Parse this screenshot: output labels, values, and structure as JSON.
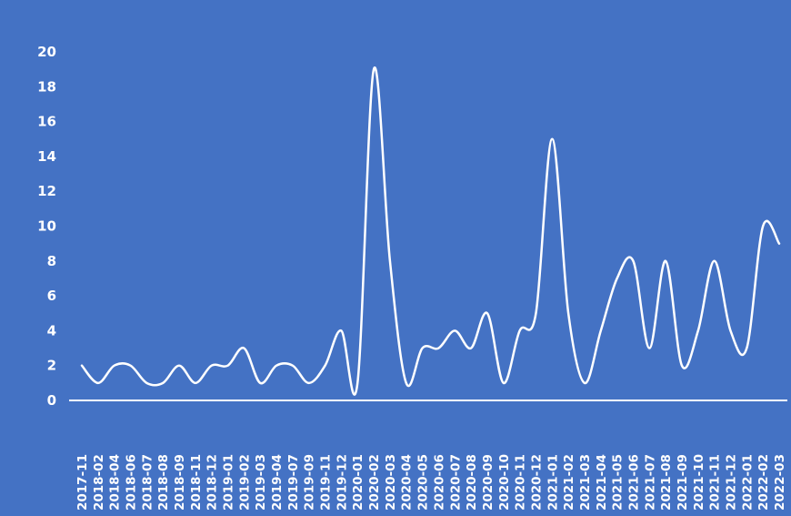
{
  "chart_data": {
    "type": "line",
    "title": "",
    "xlabel": "",
    "ylabel": "",
    "ylim": [
      0,
      20
    ],
    "yticks": [
      0,
      2,
      4,
      6,
      8,
      10,
      12,
      14,
      16,
      18,
      20
    ],
    "grid": false,
    "legend": "none",
    "line_smooth": true,
    "colors": {
      "background": "#4472C4",
      "line": "#FFFFFF",
      "axis": "#FFFFFF",
      "text": "#FFFFFF"
    },
    "categories": [
      "2017-11",
      "2018-02",
      "2018-04",
      "2018-06",
      "2018-07",
      "2018-08",
      "2018-09",
      "2018-11",
      "2018-12",
      "2019-01",
      "2019-02",
      "2019-03",
      "2019-04",
      "2019-07",
      "2019-09",
      "2019-11",
      "2019-12",
      "2020-01",
      "2020-02",
      "2020-03",
      "2020-04",
      "2020-05",
      "2020-06",
      "2020-07",
      "2020-08",
      "2020-09",
      "2020-10",
      "2020-11",
      "2020-12",
      "2021-01",
      "2021-02",
      "2021-03",
      "2021-04",
      "2021-05",
      "2021-06",
      "2021-07",
      "2021-08",
      "2021-09",
      "2021-10",
      "2021-11",
      "2021-12",
      "2022-01",
      "2022-02",
      "2022-03"
    ],
    "series": [
      {
        "values": [
          2,
          1,
          2,
          2,
          1,
          1,
          2,
          1,
          2,
          2,
          3,
          1,
          2,
          2,
          1,
          2,
          4,
          1,
          19,
          8,
          1,
          3,
          3,
          4,
          3,
          5,
          1,
          4,
          5,
          15,
          5,
          1,
          4,
          7,
          8,
          3,
          8,
          2,
          4,
          8,
          4,
          3,
          10,
          9
        ]
      }
    ]
  }
}
